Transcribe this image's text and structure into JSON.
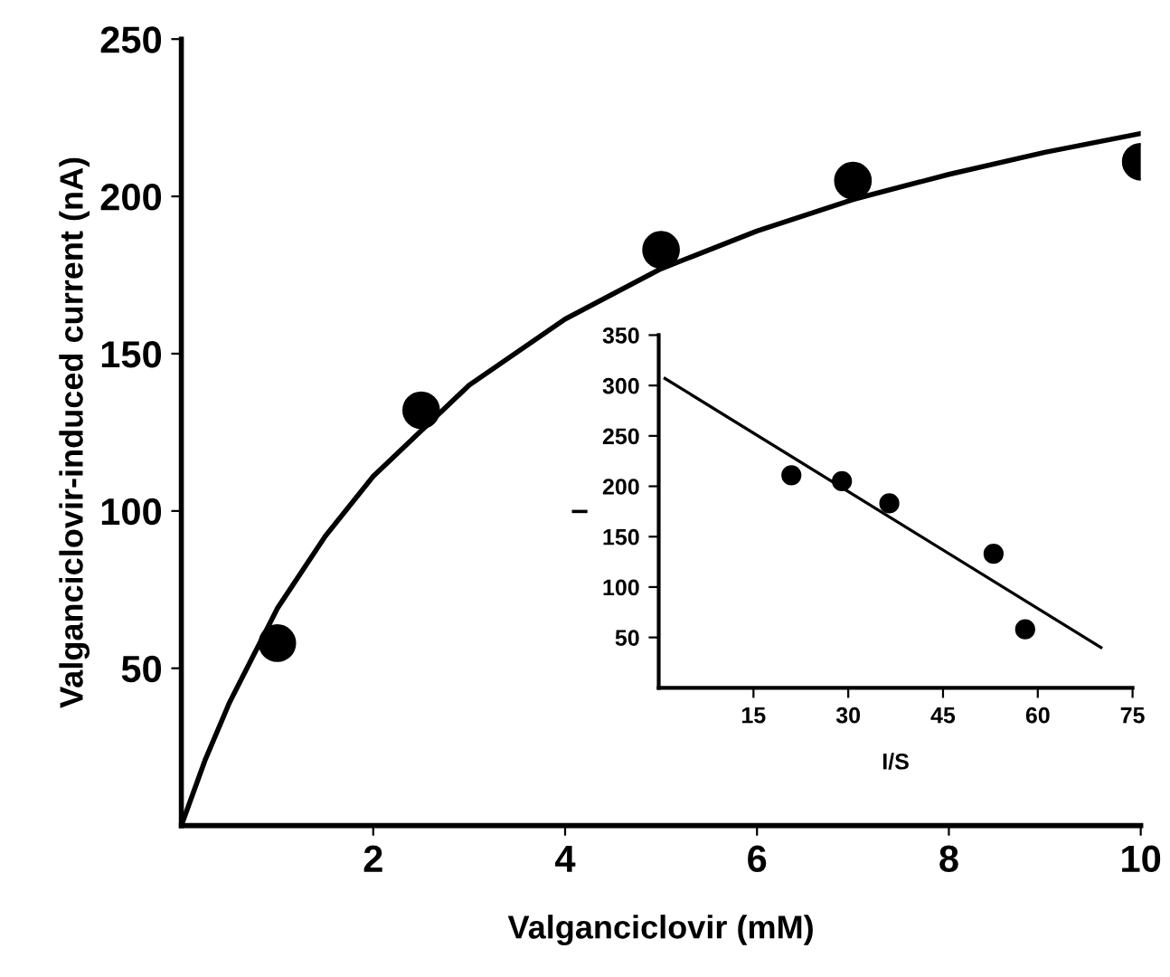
{
  "chart_data": [
    {
      "type": "scatter",
      "xlabel": "Valganciclovir (mM)",
      "ylabel": "Valganciclovir-induced current (nA)",
      "xlim": [
        0,
        10
      ],
      "ylim": [
        0,
        250
      ],
      "xticks": [
        2,
        4,
        6,
        8,
        10
      ],
      "yticks": [
        50,
        100,
        150,
        200,
        250
      ],
      "grid": false,
      "legend": false,
      "marker": "circle",
      "series": [
        {
          "color": "#000000",
          "x": [
            1,
            2.5,
            5,
            7,
            10
          ],
          "values": [
            58,
            132,
            183,
            205,
            211
          ]
        },
        {
          "type": "line",
          "color": "#000000",
          "line_style": "solid",
          "marker": "none",
          "x": [
            0,
            0.25,
            0.5,
            1,
            1.5,
            2,
            3,
            4,
            5,
            6,
            7,
            8,
            9,
            10
          ],
          "values": [
            0,
            21,
            39,
            69,
            92,
            111,
            140,
            161,
            177,
            189,
            199,
            207,
            214,
            220
          ]
        }
      ]
    },
    {
      "type": "scatter",
      "xlabel": "I/S",
      "ylabel": "I",
      "xlim": [
        0,
        75
      ],
      "ylim": [
        0,
        350
      ],
      "xticks": [
        15,
        30,
        45,
        60,
        75
      ],
      "yticks": [
        50,
        100,
        150,
        200,
        250,
        300,
        350
      ],
      "grid": false,
      "legend": false,
      "marker": "circle",
      "series": [
        {
          "color": "#000000",
          "x": [
            21,
            29,
            36.5,
            53,
            58
          ],
          "values": [
            211,
            205,
            183,
            133,
            58
          ]
        },
        {
          "type": "line",
          "color": "#000000",
          "line_style": "solid",
          "marker": "none",
          "x": [
            1,
            70
          ],
          "values": [
            307,
            40
          ]
        }
      ]
    }
  ]
}
